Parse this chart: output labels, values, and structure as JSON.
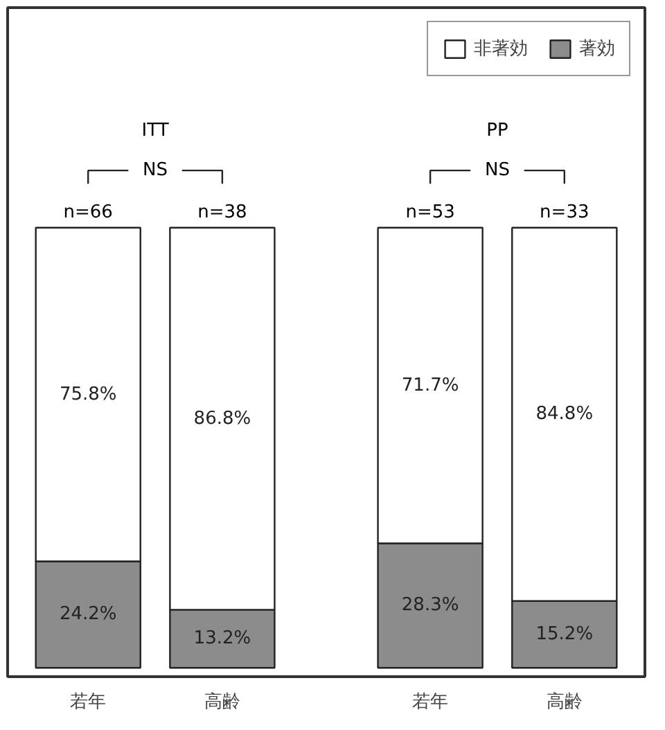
{
  "chart_data": {
    "type": "bar",
    "stacked": true,
    "categories": [
      "若年",
      "高齢",
      "若年",
      "高齢"
    ],
    "series": [
      {
        "name": "著効",
        "color": "#8c8c8c",
        "values": [
          24.2,
          13.2,
          28.3,
          15.2
        ],
        "value_labels": [
          "24.2%",
          "13.2%",
          "28.3%",
          "15.2%"
        ]
      },
      {
        "name": "非著効",
        "color": "#ffffff",
        "values": [
          75.8,
          86.8,
          71.7,
          84.8
        ],
        "value_labels": [
          "75.8%",
          "86.8%",
          "71.7%",
          "84.8%"
        ]
      }
    ],
    "annotations": [
      "ITT",
      "NS",
      "n=66",
      "n=38",
      "PP",
      "NS",
      "n=53",
      "n=33"
    ],
    "legend": "top right",
    "grid": false
  }
}
